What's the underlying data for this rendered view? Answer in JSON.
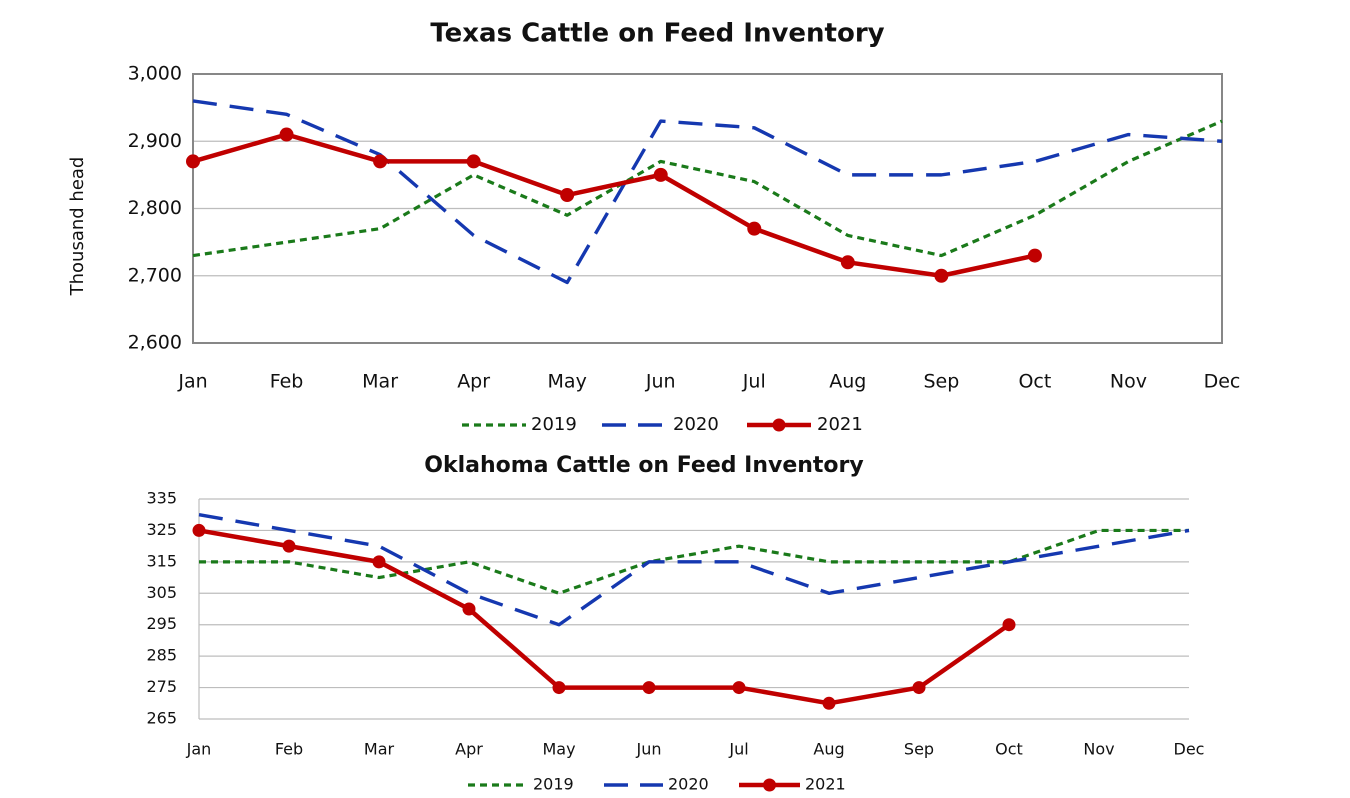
{
  "chart_data": [
    {
      "type": "line",
      "title": "Texas Cattle on Feed Inventory",
      "xlabel": "",
      "ylabel": "Thousand head",
      "categories": [
        "Jan",
        "Feb",
        "Mar",
        "Apr",
        "May",
        "Jun",
        "Jul",
        "Aug",
        "Sep",
        "Oct",
        "Nov",
        "Dec"
      ],
      "ylim": [
        2600,
        3000
      ],
      "yticks": [
        2600,
        2700,
        2800,
        2900,
        3000
      ],
      "ytick_labels": [
        "2,600",
        "2,700",
        "2,800",
        "2,900",
        "3,000"
      ],
      "grid": true,
      "legend_position": "bottom",
      "series": [
        {
          "name": "2019",
          "color": "#1a7a1a",
          "style": "dotted",
          "values": [
            2730,
            2750,
            2770,
            2850,
            2790,
            2870,
            2840,
            2760,
            2730,
            2790,
            2870,
            2930
          ]
        },
        {
          "name": "2020",
          "color": "#1538b0",
          "style": "dashed",
          "values": [
            2960,
            2940,
            2880,
            2760,
            2690,
            2930,
            2920,
            2850,
            2850,
            2870,
            2910,
            2900
          ]
        },
        {
          "name": "2021",
          "color": "#c00000",
          "style": "solid-markers",
          "values": [
            2870,
            2910,
            2870,
            2870,
            2820,
            2850,
            2770,
            2720,
            2700,
            2730,
            null,
            null
          ]
        }
      ]
    },
    {
      "type": "line",
      "title": "Oklahoma Cattle on Feed Inventory",
      "xlabel": "",
      "ylabel": "",
      "categories": [
        "Jan",
        "Feb",
        "Mar",
        "Apr",
        "May",
        "Jun",
        "Jul",
        "Aug",
        "Sep",
        "Oct",
        "Nov",
        "Dec"
      ],
      "ylim": [
        265,
        335
      ],
      "yticks": [
        265,
        275,
        285,
        295,
        305,
        315,
        325,
        335
      ],
      "ytick_labels": [
        "265",
        "275",
        "285",
        "295",
        "305",
        "315",
        "325",
        "335"
      ],
      "grid": true,
      "legend_position": "bottom",
      "series": [
        {
          "name": "2019",
          "color": "#1a7a1a",
          "style": "dotted",
          "values": [
            315,
            315,
            310,
            315,
            305,
            315,
            320,
            315,
            315,
            315,
            325,
            325
          ]
        },
        {
          "name": "2020",
          "color": "#1538b0",
          "style": "dashed",
          "values": [
            330,
            325,
            320,
            305,
            295,
            315,
            315,
            305,
            310,
            315,
            320,
            325
          ]
        },
        {
          "name": "2021",
          "color": "#c00000",
          "style": "solid-markers",
          "values": [
            325,
            320,
            315,
            300,
            275,
            275,
            275,
            270,
            275,
            295,
            null,
            null
          ]
        }
      ]
    }
  ]
}
